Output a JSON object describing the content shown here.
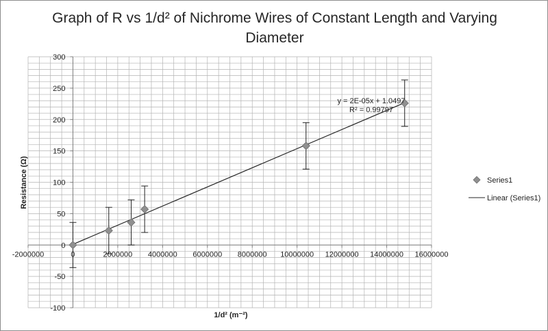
{
  "chart_data": {
    "type": "scatter",
    "title_line1": "Graph of R vs 1/d² of Nichrome Wires of Constant Length and Varying",
    "title_line2": "Diameter",
    "xlabel": "1/d² (m⁻²)",
    "ylabel": "Resistance (Ω)",
    "xlim": [
      -2000000,
      16000000
    ],
    "ylim": [
      -100,
      300
    ],
    "x_ticks": [
      -2000000,
      0,
      2000000,
      4000000,
      6000000,
      8000000,
      10000000,
      12000000,
      14000000,
      16000000
    ],
    "x_tick_labels": [
      "-2000000",
      "0",
      "2000000",
      "4000000",
      "6000000",
      "8000000",
      "10000000",
      "12000000",
      "14000000",
      "16000000"
    ],
    "y_ticks": [
      -100,
      -50,
      0,
      50,
      100,
      150,
      200,
      250,
      300
    ],
    "y_tick_labels": [
      "-100",
      "-50",
      "0",
      "50",
      "100",
      "150",
      "200",
      "250",
      "300"
    ],
    "grid": {
      "horizontal_minor_step": 10,
      "vertical_step": 500000
    },
    "series": [
      {
        "name": "Series1",
        "color": "#909090",
        "points": [
          {
            "x": 0,
            "y": 0,
            "err": 36
          },
          {
            "x": 1600000,
            "y": 23,
            "err": 37
          },
          {
            "x": 2600000,
            "y": 36,
            "err": 36
          },
          {
            "x": 3200000,
            "y": 57,
            "err": 37
          },
          {
            "x": 10400000,
            "y": 158,
            "err": 37
          },
          {
            "x": 14800000,
            "y": 226,
            "err": 37
          }
        ]
      }
    ],
    "trendline": {
      "name": "Linear (Series1)",
      "color": "#262626",
      "slope": 1.525e-05,
      "intercept": 1.0497,
      "x_range": [
        0,
        14800000
      ],
      "equation_label": "y = 2E-05x + 1.0497",
      "r2_label": "R² = 0.99797"
    },
    "legend_position": "right"
  }
}
